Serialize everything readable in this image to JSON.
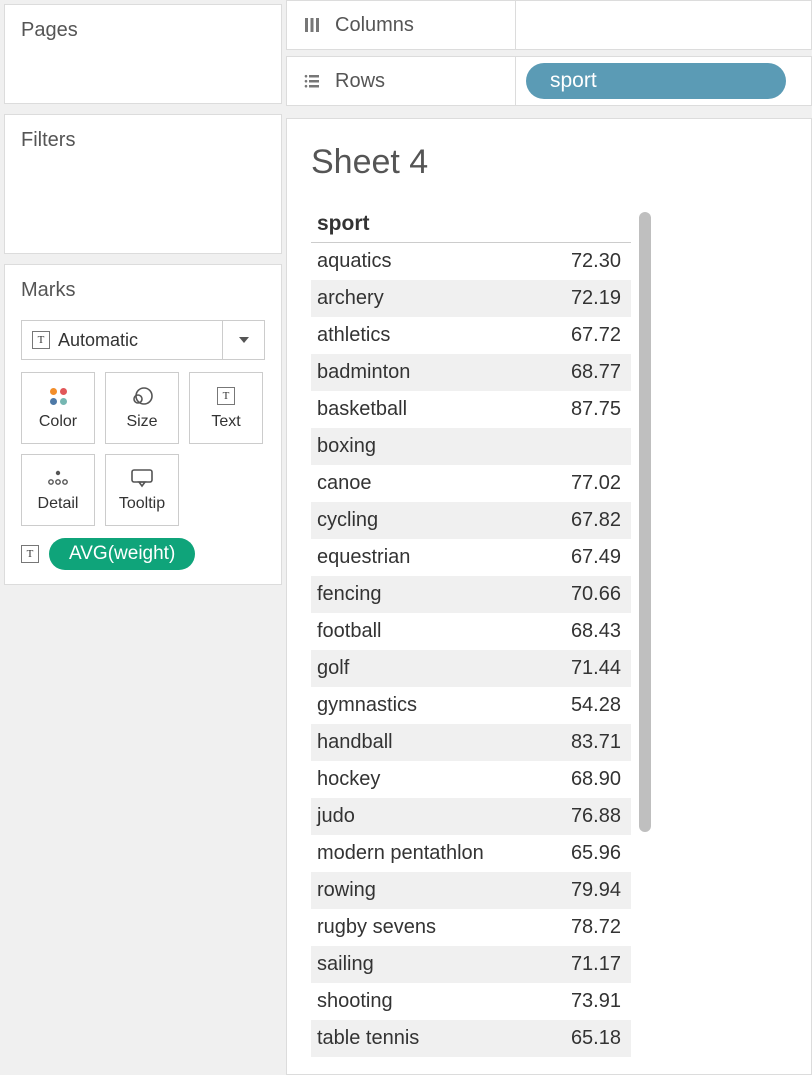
{
  "colors": {
    "measure_pill": "#0fa47a",
    "dimension_pill": "#5b9bb5",
    "scrollbar_thumb": "#bfbfbf",
    "alt_row_bg": "#f0f0f0"
  },
  "left": {
    "pages_title": "Pages",
    "filters_title": "Filters",
    "marks_title": "Marks",
    "mark_type": "Automatic",
    "buttons": {
      "color": "Color",
      "size": "Size",
      "text": "Text",
      "detail": "Detail",
      "tooltip": "Tooltip"
    },
    "measure_pill": "AVG(weight)"
  },
  "shelves": {
    "columns_label": "Columns",
    "rows_label": "Rows",
    "rows_pill": "sport"
  },
  "sheet": {
    "title": "Sheet 4",
    "header": "sport",
    "rows": [
      {
        "label": "aquatics",
        "value": "72.30"
      },
      {
        "label": "archery",
        "value": "72.19"
      },
      {
        "label": "athletics",
        "value": "67.72"
      },
      {
        "label": "badminton",
        "value": "68.77"
      },
      {
        "label": "basketball",
        "value": "87.75"
      },
      {
        "label": "boxing",
        "value": ""
      },
      {
        "label": "canoe",
        "value": "77.02"
      },
      {
        "label": "cycling",
        "value": "67.82"
      },
      {
        "label": "equestrian",
        "value": "67.49"
      },
      {
        "label": "fencing",
        "value": "70.66"
      },
      {
        "label": "football",
        "value": "68.43"
      },
      {
        "label": "golf",
        "value": "71.44"
      },
      {
        "label": "gymnastics",
        "value": "54.28"
      },
      {
        "label": "handball",
        "value": "83.71"
      },
      {
        "label": "hockey",
        "value": "68.90"
      },
      {
        "label": "judo",
        "value": "76.88"
      },
      {
        "label": "modern pentathlon",
        "value": "65.96"
      },
      {
        "label": "rowing",
        "value": "79.94"
      },
      {
        "label": "rugby sevens",
        "value": "78.72"
      },
      {
        "label": "sailing",
        "value": "71.17"
      },
      {
        "label": "shooting",
        "value": "73.91"
      },
      {
        "label": "table tennis",
        "value": "65.18"
      }
    ]
  }
}
